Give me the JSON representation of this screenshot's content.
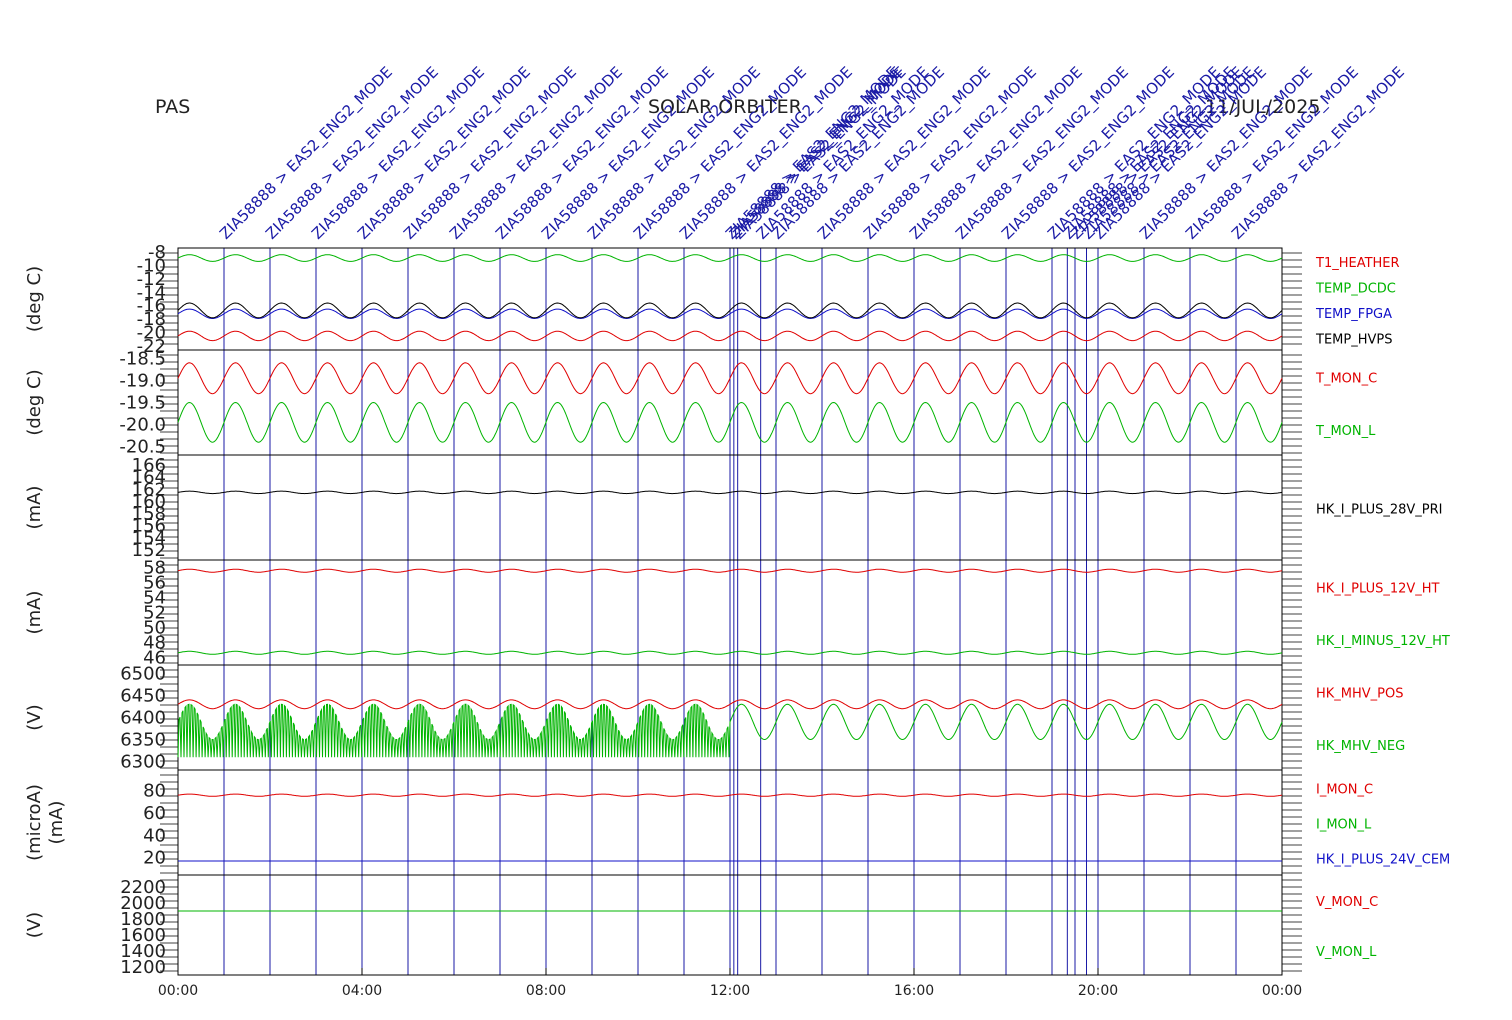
{
  "header": {
    "instrument": "PAS",
    "mission": "SOLAR ORBITER",
    "date": "11/JUL/2025"
  },
  "colors": {
    "red": "#e00000",
    "green": "#00b400",
    "blue": "#1010c8",
    "black": "#000000",
    "event": "#1a1aa6"
  },
  "events": {
    "label": "ZIA58888 > EAS2_ENG2_MODE",
    "times": [
      "01:00",
      "02:00",
      "03:00",
      "04:00",
      "05:00",
      "06:00",
      "07:00",
      "08:00",
      "09:00",
      "10:00",
      "11:00",
      "12:00",
      "12:05",
      "12:10",
      "12:40",
      "13:00",
      "14:00",
      "15:00",
      "16:00",
      "17:00",
      "18:00",
      "19:00",
      "19:20",
      "19:30",
      "19:45",
      "20:00",
      "21:00",
      "22:00",
      "23:00"
    ]
  },
  "chart_data": [
    {
      "type": "line",
      "ylabel": "(deg C)",
      "yticks": [
        "-8",
        "-10",
        "-12",
        "-14",
        "-16",
        "-18",
        "-20",
        "-22"
      ],
      "ylim": [
        -22,
        -8
      ],
      "series": [
        {
          "name": "T1_HEATHER",
          "color": "red",
          "mean": -20.5,
          "amp": 0.7,
          "period_h": 1
        },
        {
          "name": "TEMP_DCDC",
          "color": "green",
          "mean": -8.9,
          "amp": 0.5,
          "period_h": 1
        },
        {
          "name": "TEMP_FPGA",
          "color": "blue",
          "mean": -17.2,
          "amp": 0.7,
          "period_h": 1
        },
        {
          "name": "TEMP_HVPS",
          "color": "black",
          "mean": -16.7,
          "amp": 1.1,
          "period_h": 1
        }
      ]
    },
    {
      "type": "line",
      "ylabel": "(deg C)",
      "yticks": [
        "-18.5",
        "-19.0",
        "-19.5",
        "-20.0",
        "-20.5"
      ],
      "ylim": [
        -20.6,
        -18.4
      ],
      "series": [
        {
          "name": "T_MON_C",
          "color": "red",
          "mean": -18.95,
          "amp": 0.35,
          "period_h": 1
        },
        {
          "name": "T_MON_L",
          "color": "green",
          "mean": -19.95,
          "amp": 0.45,
          "period_h": 1
        }
      ]
    },
    {
      "type": "line",
      "ylabel": "(mA)",
      "yticks": [
        "166",
        "164",
        "162",
        "160",
        "158",
        "156",
        "154",
        "152"
      ],
      "ylim": [
        151,
        167
      ],
      "series": [
        {
          "name": "HK_I_PLUS_28V_PRI",
          "color": "black",
          "mean": 161.5,
          "amp": 0.2,
          "period_h": 1
        }
      ]
    },
    {
      "type": "line",
      "ylabel": "(mA)",
      "yticks": [
        "58",
        "56",
        "54",
        "52",
        "50",
        "48",
        "46"
      ],
      "ylim": [
        45.5,
        58.5
      ],
      "series": [
        {
          "name": "HK_I_PLUS_12V_HT",
          "color": "red",
          "mean": 57.6,
          "amp": 0.2,
          "period_h": 1
        },
        {
          "name": "HK_I_MINUS_12V_HT",
          "color": "green",
          "mean": 46.6,
          "amp": 0.2,
          "period_h": 1
        }
      ]
    },
    {
      "type": "line",
      "ylabel": "(V)",
      "yticks": [
        "6500",
        "6450",
        "6400",
        "6350",
        "6300"
      ],
      "ylim": [
        6290,
        6510
      ],
      "series": [
        {
          "name": "HK_MHV_POS",
          "color": "red",
          "mean": 6430,
          "amp": 10,
          "period_h": 1
        },
        {
          "name": "HK_MHV_NEG",
          "color": "green",
          "mean": 6390,
          "amp": 40,
          "period_h": 1
        }
      ]
    },
    {
      "type": "line",
      "ylabel": "(microA)",
      "ylabel2": "(mA)",
      "yticks": [
        "80",
        "60",
        "40",
        "20"
      ],
      "ylim": [
        8,
        95
      ],
      "series": [
        {
          "name": "I_MON_C",
          "color": "red",
          "mean": 76,
          "amp": 1,
          "period_h": 1
        },
        {
          "name": "I_MON_L",
          "color": "green",
          "mean": 17,
          "amp": 0,
          "period_h": 1
        },
        {
          "name": "HK_I_PLUS_24V_CEM",
          "color": "blue",
          "mean": 17,
          "amp": 0,
          "period_h": 1
        }
      ]
    },
    {
      "type": "line",
      "ylabel": "(V)",
      "yticks": [
        "2200",
        "2000",
        "1800",
        "1600",
        "1400",
        "1200"
      ],
      "ylim": [
        1150,
        2300
      ],
      "series": [
        {
          "name": "V_MON_C",
          "color": "red",
          "mean": 1900,
          "amp": 0,
          "period_h": 1
        },
        {
          "name": "V_MON_L",
          "color": "green",
          "mean": 1900,
          "amp": 0,
          "period_h": 1
        }
      ]
    }
  ],
  "xaxis": {
    "ticks": [
      "00:00",
      "04:00",
      "08:00",
      "12:00",
      "16:00",
      "20:00",
      "00:00"
    ],
    "xlim": [
      "00:00",
      "24:00"
    ]
  }
}
